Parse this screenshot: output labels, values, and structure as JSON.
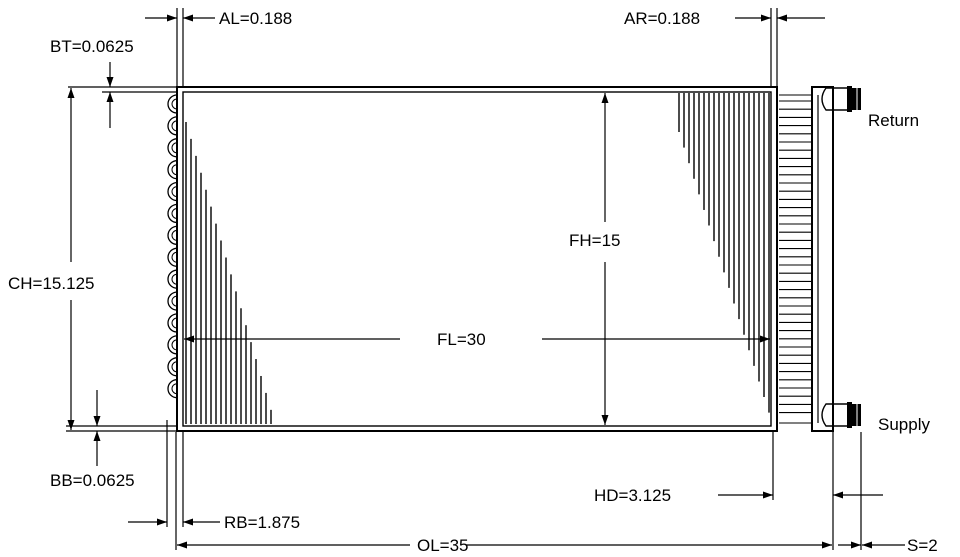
{
  "dimensions": {
    "al": "AL=0.188",
    "ar": "AR=0.188",
    "bt": "BT=0.0625",
    "ch": "CH=15.125",
    "fh": "FH=15",
    "fl": "FL=30",
    "bb": "BB=0.0625",
    "rb": "RB=1.875",
    "hd": "HD=3.125",
    "ol": "OL=35",
    "s": "S=2"
  },
  "connections": {
    "return": "Return",
    "supply": "Supply"
  }
}
